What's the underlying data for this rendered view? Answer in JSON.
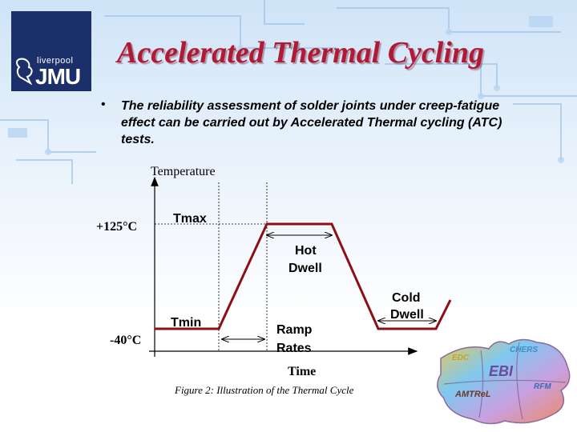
{
  "logo": {
    "line1": "liverpool",
    "line2": "JMU"
  },
  "title": "Accelerated Thermal Cycling",
  "bullet": "The reliability assessment of solder joints under creep-fatigue effect can be carried out by Accelerated Thermal cycling (ATC) tests.",
  "diagram": {
    "y_axis_label": "Temperature",
    "x_axis_label": "Time",
    "high_temp": "+125°C",
    "low_temp": "-40°C",
    "tmax": "Tmax",
    "tmin": "Tmin",
    "hot_dwell": [
      "Hot",
      "Dwell"
    ],
    "cold_dwell": [
      "Cold",
      "Dwell"
    ],
    "ramp_rates": [
      "Ramp",
      "Rates"
    ],
    "caption": "Figure 2: Illustration of the Thermal Cycle",
    "colors": {
      "cycle": "#8b0f14",
      "axis": "#000000"
    }
  },
  "puzzle_labels": [
    "EDC",
    "CHERS",
    "EBI",
    "AMTReL",
    "RFM"
  ],
  "colors": {
    "title": "#b01a35",
    "logo_bg": "#1b2f6b"
  }
}
